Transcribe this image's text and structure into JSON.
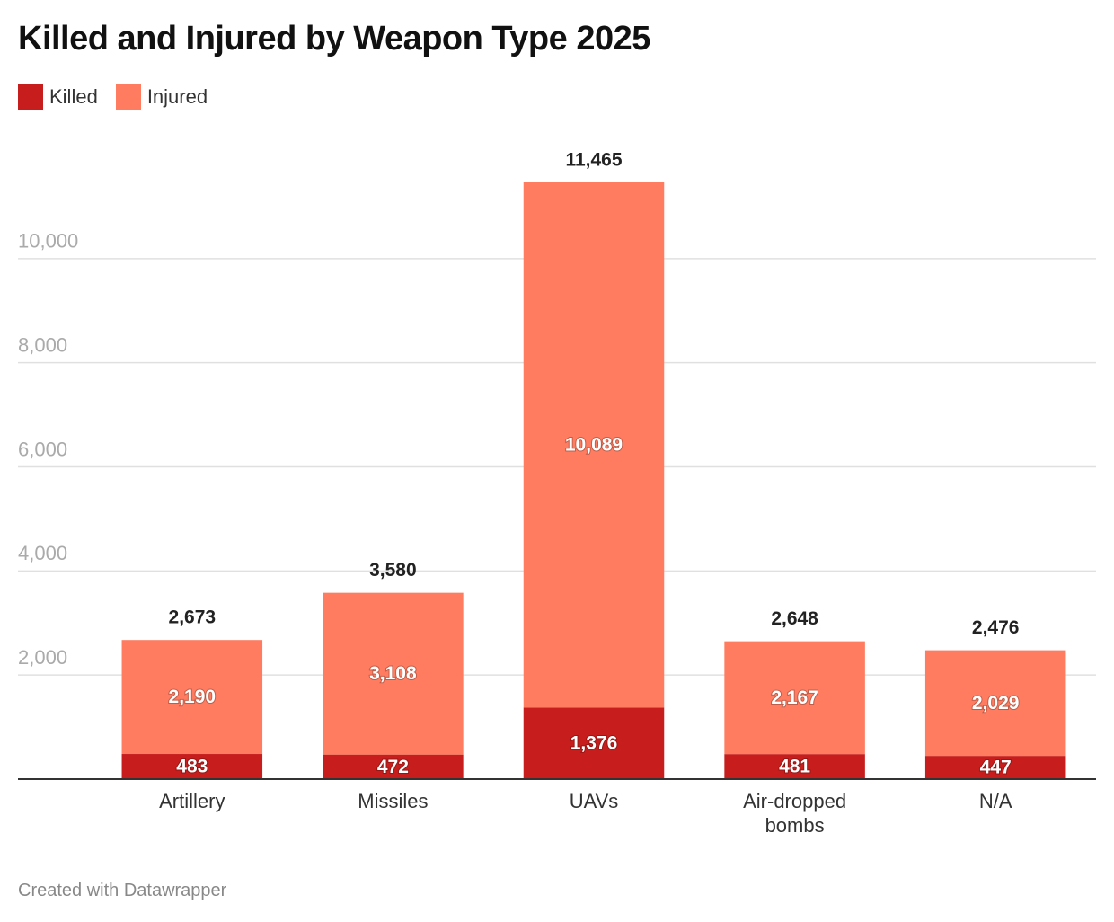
{
  "chart_data": {
    "type": "stacked-bar",
    "title": "Killed and Injured by Weapon Type 2025",
    "categories": [
      "Artillery",
      "Missiles",
      "UAVs",
      "Air-dropped bombs",
      "N/A"
    ],
    "series": [
      {
        "name": "Killed",
        "color": "#c71e1d",
        "values": [
          483,
          472,
          1376,
          481,
          447
        ],
        "value_labels": [
          "483",
          "472",
          "1,376",
          "481",
          "447"
        ]
      },
      {
        "name": "Injured",
        "color": "#ff7c61",
        "values": [
          2190,
          3108,
          10089,
          2167,
          2029
        ],
        "value_labels": [
          "2,190",
          "3,108",
          "10,089",
          "2,167",
          "2,029"
        ]
      }
    ],
    "totals": [
      2673,
      3580,
      11465,
      2648,
      2476
    ],
    "total_labels": [
      "2,673",
      "3,580",
      "11,465",
      "2,648",
      "2,476"
    ],
    "ylim": [
      0,
      12000
    ],
    "yticks": [
      {
        "value": 2000,
        "label": "2,000"
      },
      {
        "value": 4000,
        "label": "4,000"
      },
      {
        "value": 6000,
        "label": "6,000"
      },
      {
        "value": 8000,
        "label": "8,000"
      },
      {
        "value": 10000,
        "label": "10,000"
      }
    ],
    "grid": true,
    "credit": "Created with Datawrapper"
  }
}
